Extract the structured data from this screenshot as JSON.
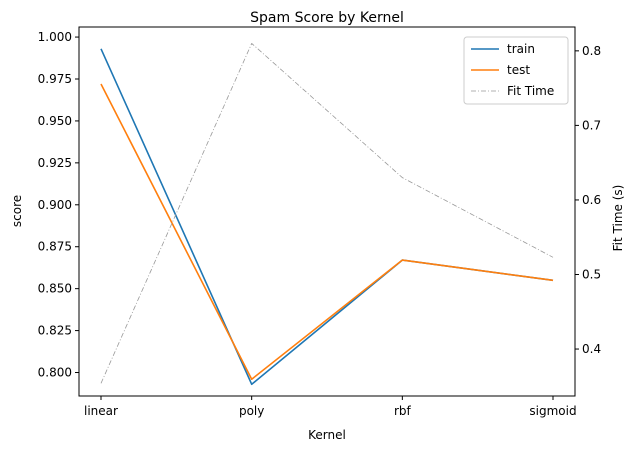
{
  "chart_data": {
    "type": "line",
    "title": "Spam Score by Kernel",
    "xlabel": "Kernel",
    "ylabel": "score",
    "y2label": "Fit Time (s)",
    "categories": [
      "linear",
      "poly",
      "rbf",
      "sigmoid"
    ],
    "ylim": [
      0.786,
      1.006
    ],
    "y2lim": [
      0.337,
      0.832
    ],
    "yticks": [
      "0.800",
      "0.825",
      "0.850",
      "0.875",
      "0.900",
      "0.925",
      "0.950",
      "0.975",
      "1.000"
    ],
    "y2ticks": [
      "0.4",
      "0.5",
      "0.6",
      "0.7",
      "0.8"
    ],
    "grid": false,
    "legend_position": "top-right",
    "series": [
      {
        "name": "train",
        "axis": "left",
        "color": "#1f77b4",
        "style": "solid",
        "values": [
          0.993,
          0.793,
          0.867,
          0.855
        ]
      },
      {
        "name": "test",
        "axis": "left",
        "color": "#ff7f0e",
        "style": "solid",
        "values": [
          0.972,
          0.796,
          0.867,
          0.855
        ]
      },
      {
        "name": "Fit Time",
        "axis": "right",
        "color": "#999999",
        "style": "dashdot",
        "values": [
          0.354,
          0.81,
          0.63,
          0.523
        ]
      }
    ]
  }
}
